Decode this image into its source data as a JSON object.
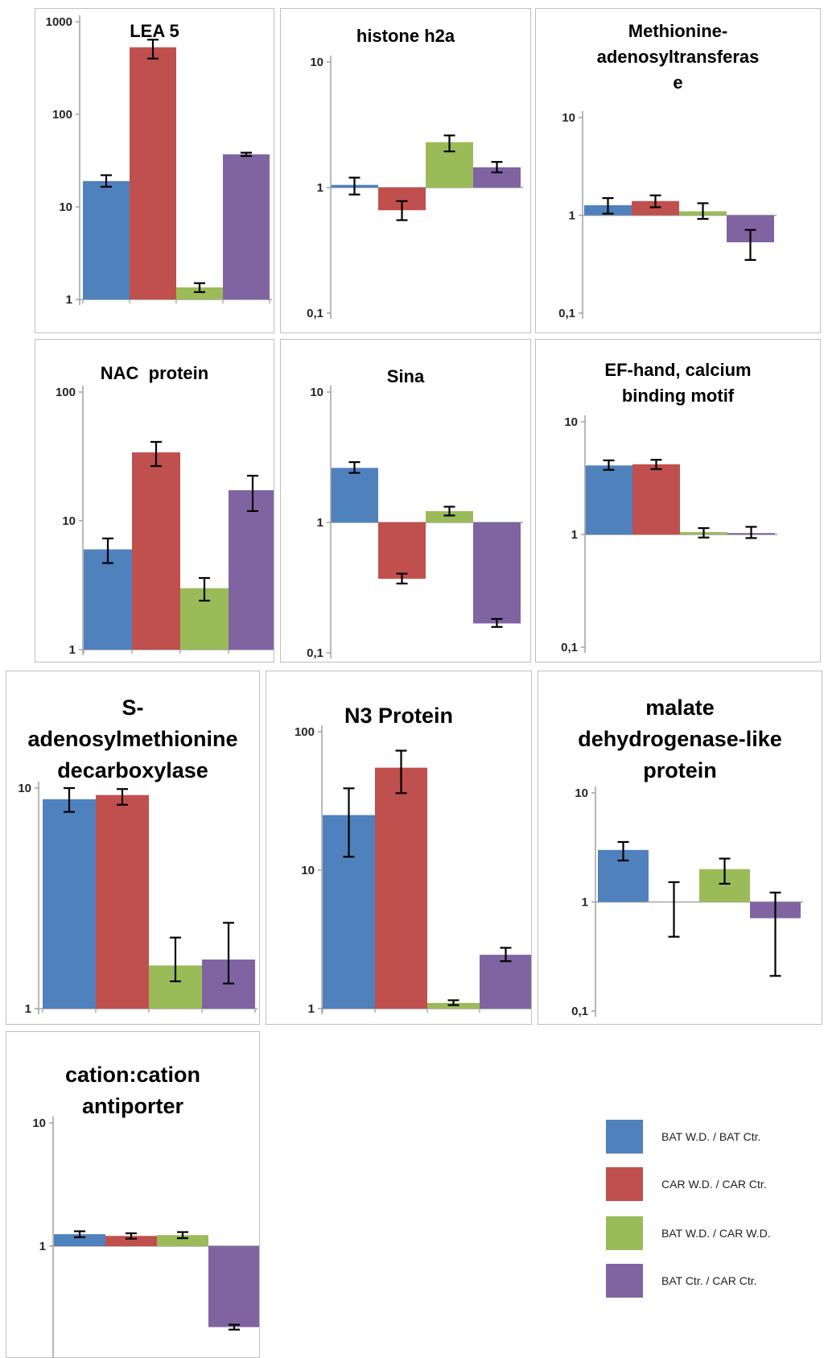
{
  "palette": {
    "bars": [
      "#4F81BD",
      "#C0504D",
      "#9BBB59",
      "#8064A2"
    ],
    "axis": "#a6a6a6",
    "error": "#000000",
    "tick_label": "#262626",
    "title": "#000000"
  },
  "legend": {
    "items": [
      {
        "label": "BAT W.D. / BAT Ctr.",
        "color": "#4F81BD"
      },
      {
        "label": "CAR W.D. / CAR Ctr.",
        "color": "#C0504D"
      },
      {
        "label": "BAT W.D. / CAR W.D.",
        "color": "#9BBB59"
      },
      {
        "label": "BAT Ctr. / CAR Ctr.",
        "color": "#8064A2"
      }
    ]
  },
  "categories": [
    "BAT W.D. / BAT Ctr.",
    "CAR W.D. / CAR Ctr.",
    "BAT W.D. / CAR W.D.",
    "BAT Ctr. / CAR Ctr."
  ],
  "chart_data": [
    {
      "type": "bar",
      "yscale": "log",
      "title": "LEA 5",
      "title_lines": [
        "LEA 5"
      ],
      "ylim": [
        1,
        1000
      ],
      "yticks": [
        {
          "label": "1000",
          "value": 1000
        },
        {
          "label": "100",
          "value": 100
        },
        {
          "label": "10",
          "value": 10
        },
        {
          "label": "1",
          "value": 1
        }
      ],
      "values": [
        19,
        530,
        1.35,
        37
      ],
      "errors": [
        [
          16.5,
          22
        ],
        [
          400,
          640
        ],
        [
          1.2,
          1.5
        ],
        [
          35.5,
          38.5
        ]
      ]
    },
    {
      "type": "bar",
      "yscale": "log",
      "title": "histone h2a",
      "title_lines": [
        "histone h2a"
      ],
      "ylim": [
        0.1,
        10
      ],
      "yticks": [
        {
          "label": "10",
          "value": 10
        },
        {
          "label": "1",
          "value": 1
        },
        {
          "label": "0,1",
          "value": 0.1
        }
      ],
      "values": [
        1.05,
        0.66,
        2.3,
        1.45
      ],
      "errors": [
        [
          0.88,
          1.2
        ],
        [
          0.55,
          0.78
        ],
        [
          1.94,
          2.6
        ],
        [
          1.32,
          1.6
        ]
      ]
    },
    {
      "type": "bar",
      "yscale": "log",
      "title": "Methionine-adenosyltransferase",
      "title_lines": [
        "Methionine-",
        "adenosyltransferas",
        "e"
      ],
      "ylim": [
        0.1,
        10
      ],
      "yticks": [
        {
          "label": "10",
          "value": 10
        },
        {
          "label": "1",
          "value": 1
        },
        {
          "label": "0,1",
          "value": 0.1
        }
      ],
      "values": [
        1.27,
        1.4,
        1.1,
        0.53
      ],
      "errors": [
        [
          1.04,
          1.5
        ],
        [
          1.21,
          1.6
        ],
        [
          0.92,
          1.33
        ],
        [
          0.35,
          0.71
        ]
      ]
    },
    {
      "type": "bar",
      "yscale": "log",
      "title": "NAC protein",
      "title_lines": [
        "NAC  protein"
      ],
      "ylim": [
        1,
        100
      ],
      "yticks": [
        {
          "label": "100",
          "value": 100
        },
        {
          "label": "10",
          "value": 10
        },
        {
          "label": "1",
          "value": 1
        }
      ],
      "values": [
        6,
        34,
        3,
        17.3
      ],
      "errors": [
        [
          4.7,
          7.3
        ],
        [
          26.6,
          41
        ],
        [
          2.4,
          3.6
        ],
        [
          11.9,
          22.4
        ]
      ]
    },
    {
      "type": "bar",
      "yscale": "log",
      "title": "Sina",
      "title_lines": [
        "Sina"
      ],
      "ylim": [
        0.1,
        10
      ],
      "yticks": [
        {
          "label": "10",
          "value": 10
        },
        {
          "label": "1",
          "value": 1
        },
        {
          "label": "0,1",
          "value": 0.1
        }
      ],
      "values": [
        2.62,
        0.37,
        1.22,
        0.168
      ],
      "errors": [
        [
          2.4,
          2.9
        ],
        [
          0.34,
          0.405
        ],
        [
          1.13,
          1.32
        ],
        [
          0.158,
          0.182
        ]
      ]
    },
    {
      "type": "bar",
      "yscale": "log",
      "title": "EF-hand, calcium binding motif",
      "title_lines": [
        "EF-hand, calcium",
        "binding motif"
      ],
      "ylim": [
        0.1,
        10
      ],
      "yticks": [
        {
          "label": "10",
          "value": 10
        },
        {
          "label": "1",
          "value": 1
        },
        {
          "label": "0,1",
          "value": 0.1
        }
      ],
      "values": [
        4.1,
        4.2,
        1.05,
        1.03
      ],
      "errors": [
        [
          3.75,
          4.55
        ],
        [
          3.8,
          4.6
        ],
        [
          0.94,
          1.14
        ],
        [
          0.93,
          1.17
        ]
      ]
    },
    {
      "type": "bar",
      "yscale": "log",
      "title": "S-adenosylmethionine decarboxylase",
      "title_lines": [
        "S-",
        "adenosylmethionine",
        "decarboxylase"
      ],
      "ylim": [
        1,
        10
      ],
      "yticks": [
        {
          "label": "10",
          "value": 10
        },
        {
          "label": "1",
          "value": 1
        }
      ],
      "values": [
        8.9,
        9.3,
        1.57,
        1.67
      ],
      "errors": [
        [
          7.8,
          10
        ],
        [
          8.4,
          9.9
        ],
        [
          1.33,
          2.1
        ],
        [
          1.3,
          2.45
        ]
      ]
    },
    {
      "type": "bar",
      "yscale": "log",
      "title": "N3 Protein",
      "title_lines": [
        "N3 Protein"
      ],
      "ylim": [
        1,
        100
      ],
      "yticks": [
        {
          "label": "100",
          "value": 100
        },
        {
          "label": "10",
          "value": 10
        },
        {
          "label": "1",
          "value": 1
        }
      ],
      "values": [
        25,
        55,
        1.1,
        2.45
      ],
      "errors": [
        [
          12.5,
          39
        ],
        [
          36,
          73
        ],
        [
          1.06,
          1.15
        ],
        [
          2.2,
          2.75
        ]
      ]
    },
    {
      "type": "bar",
      "yscale": "log",
      "title": "malate dehydrogenase-like protein",
      "title_lines": [
        "malate",
        "dehydrogenase-like",
        "protein"
      ],
      "ylim": [
        0.1,
        10
      ],
      "yticks": [
        {
          "label": "10",
          "value": 10
        },
        {
          "label": "1",
          "value": 1
        },
        {
          "label": "0,1",
          "value": 0.1
        }
      ],
      "values": [
        3.0,
        1.0,
        2.0,
        0.71
      ],
      "errors": [
        [
          2.4,
          3.55
        ],
        [
          0.48,
          1.52
        ],
        [
          1.47,
          2.5
        ],
        [
          0.21,
          1.22
        ]
      ]
    },
    {
      "type": "bar",
      "yscale": "log",
      "title": "cation:cation antiporter",
      "title_lines": [
        "cation:cation",
        "antiporter"
      ],
      "ylim": [
        0.1,
        10
      ],
      "yticks": [
        {
          "label": "10",
          "value": 10
        },
        {
          "label": "1",
          "value": 1
        }
      ],
      "values": [
        1.25,
        1.21,
        1.23,
        0.22
      ],
      "errors": [
        [
          1.18,
          1.32
        ],
        [
          1.15,
          1.27
        ],
        [
          1.16,
          1.3
        ],
        [
          0.21,
          0.23
        ]
      ]
    }
  ]
}
